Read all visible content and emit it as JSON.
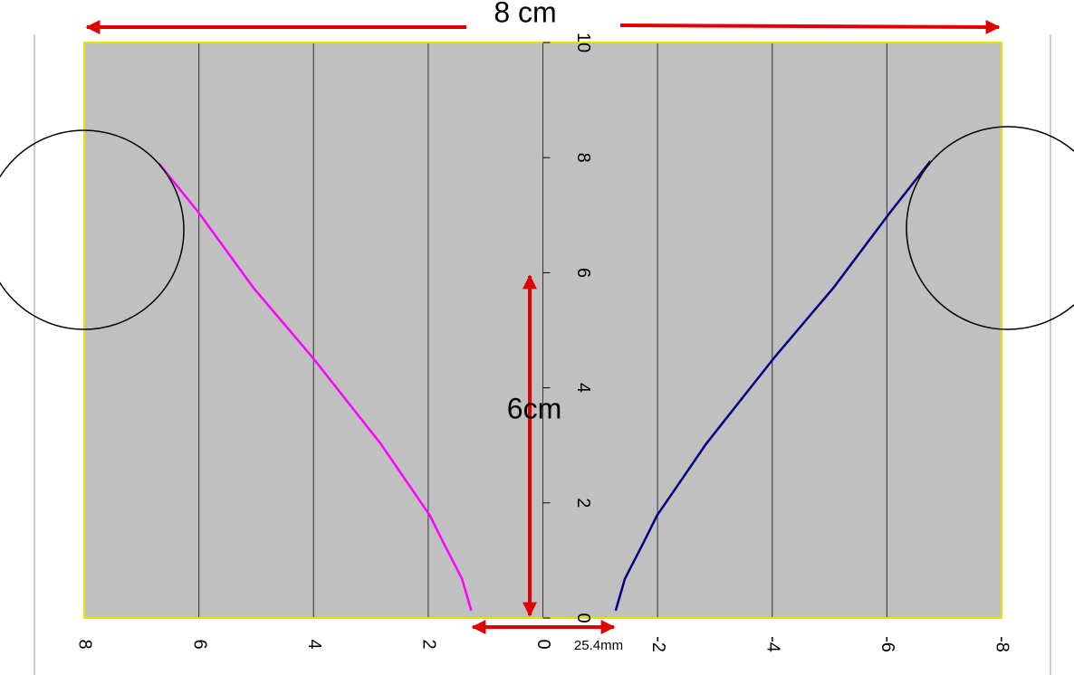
{
  "chart_data": {
    "type": "line",
    "annotations": [
      "8 cm",
      "6cm",
      "25.4mm"
    ],
    "series": [
      {
        "color": "#ff00ff",
        "x": [
          1.25,
          1.41,
          1.73,
          1.97,
          2.83,
          4.02,
          5.05,
          6.0,
          6.7
        ],
        "values": [
          0.13,
          0.68,
          1.3,
          1.78,
          3.03,
          4.53,
          5.74,
          7.04,
          7.9
        ]
      },
      {
        "color": "#000080",
        "x": [
          -1.27,
          -1.43,
          -1.75,
          -1.99,
          -2.85,
          -4.04,
          -5.07,
          -6.05,
          -6.76
        ],
        "values": [
          0.13,
          0.68,
          1.3,
          1.78,
          3.03,
          4.53,
          5.74,
          7.04,
          7.94
        ]
      }
    ],
    "xlim": [
      8,
      -8
    ],
    "ylim": [
      0,
      10
    ],
    "xticks": [
      8,
      6,
      4,
      2,
      0,
      -2,
      -4,
      -6,
      -8
    ],
    "yticks": [
      0,
      2,
      4,
      6,
      8,
      10
    ],
    "grid": true,
    "background": "#c0c0c0",
    "border_color": "#e8e000",
    "annotation_color": "#e00000"
  }
}
